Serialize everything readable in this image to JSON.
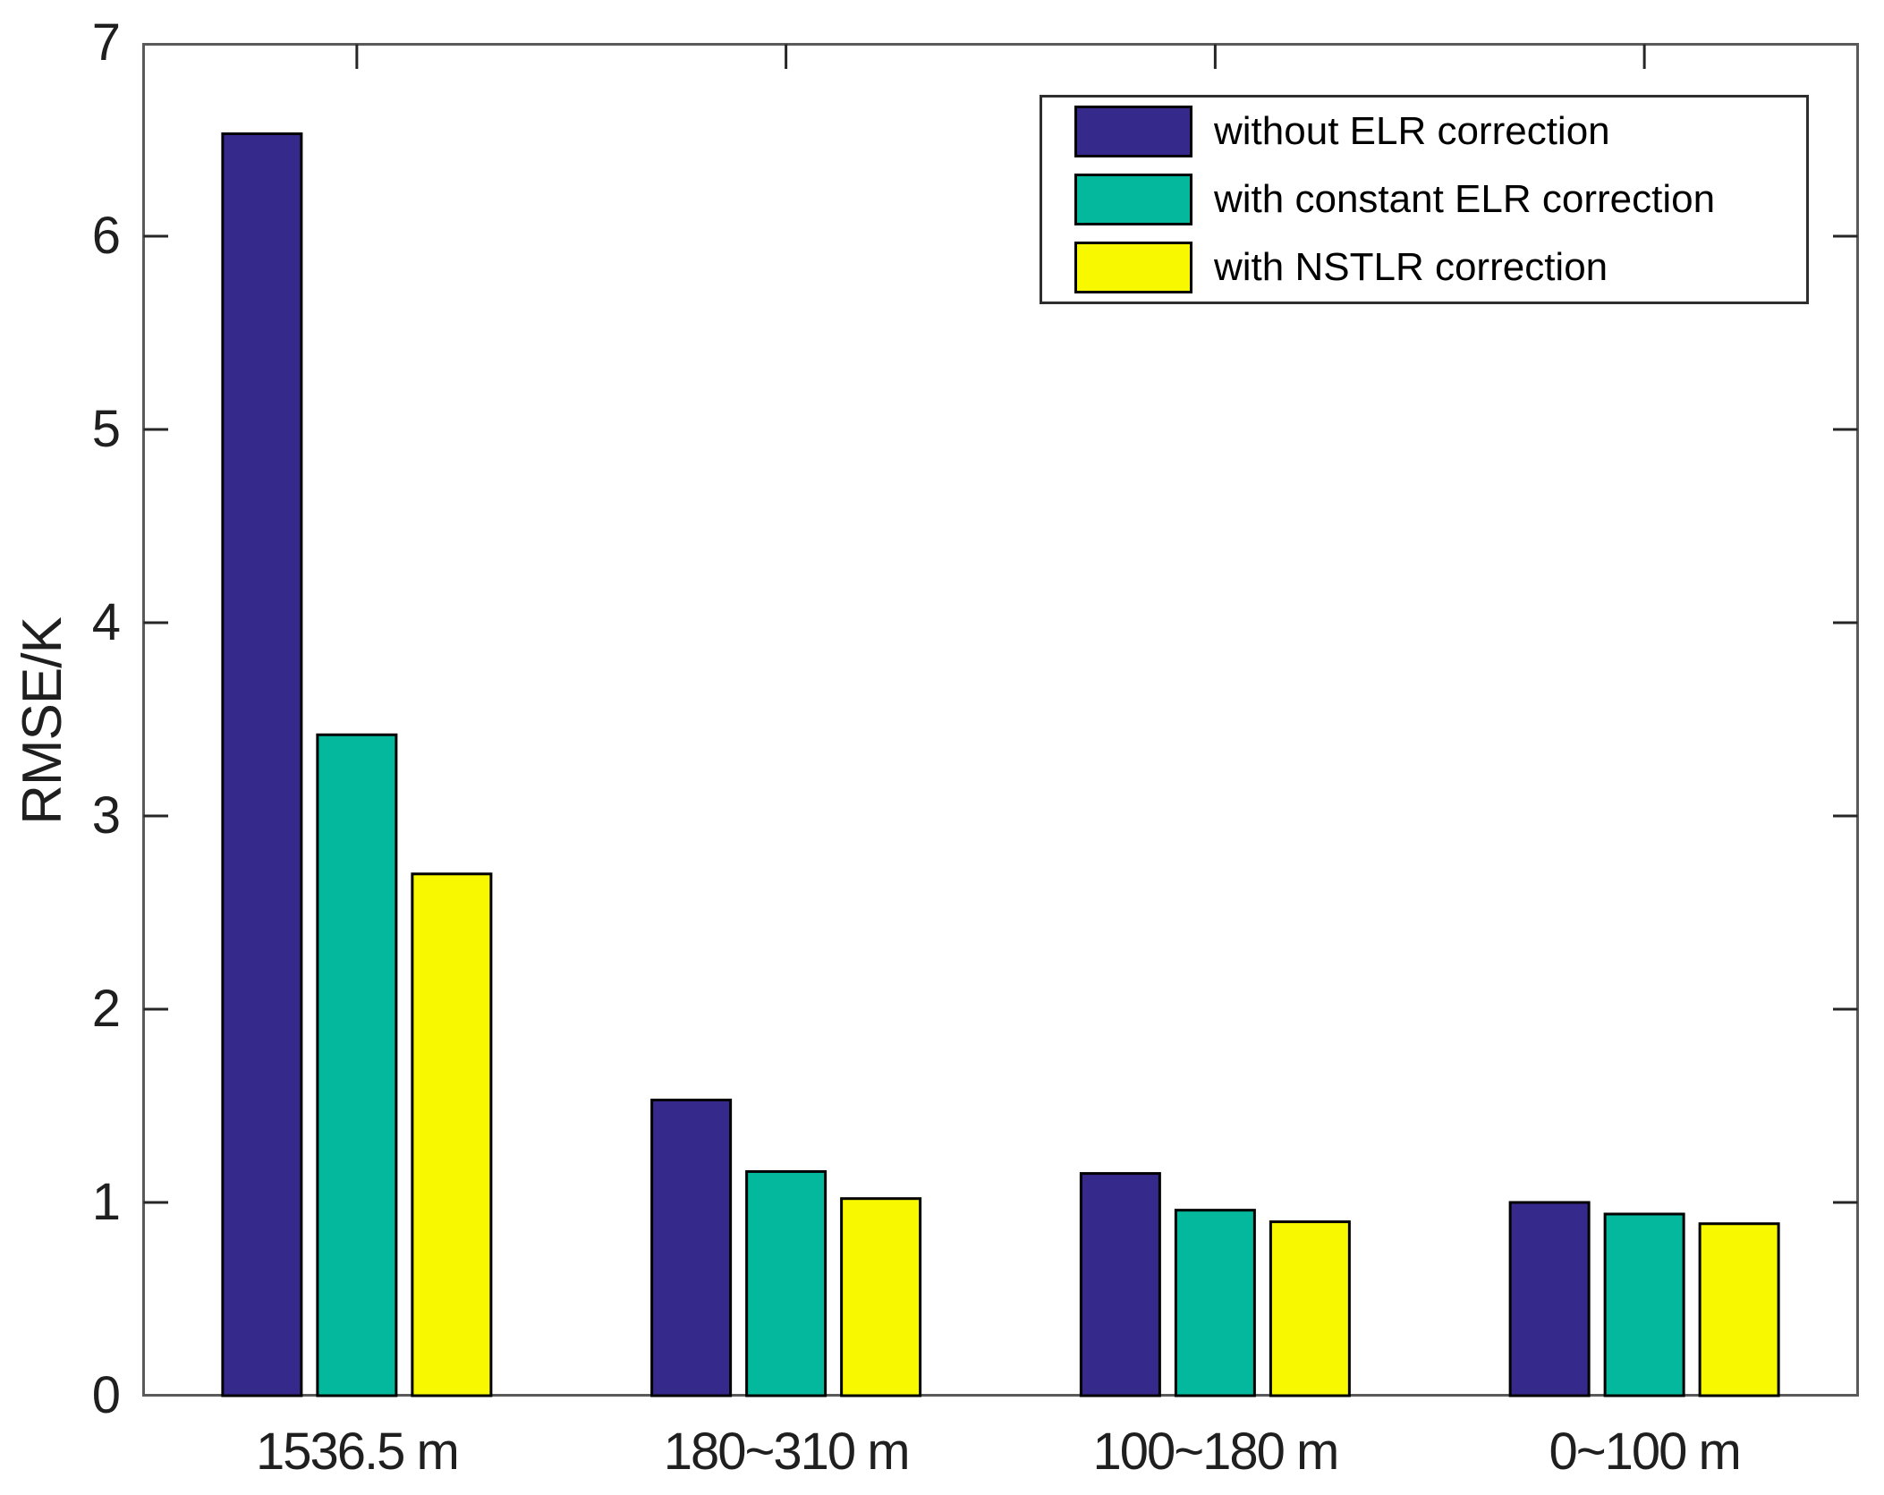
{
  "chart_data": {
    "type": "bar",
    "title": "",
    "xlabel": "",
    "ylabel": "RMSE/K",
    "categories": [
      "1536.5 m",
      "180~310 m",
      "100~180 m",
      "0~100 m"
    ],
    "series": [
      {
        "name": "without ELR correction",
        "color": "#352a8c",
        "values": [
          6.53,
          1.53,
          1.15,
          1.0
        ]
      },
      {
        "name": "with constant ELR correction",
        "color": "#04b89d",
        "values": [
          3.42,
          1.16,
          0.96,
          0.94
        ]
      },
      {
        "name": "with NSTLR correction",
        "color": "#f8f800",
        "values": [
          2.7,
          1.02,
          0.9,
          0.89
        ]
      }
    ],
    "ylim": [
      0,
      7
    ],
    "yticks": [
      0,
      1,
      2,
      3,
      4,
      5,
      6,
      7
    ],
    "grid": false,
    "legend_position": "top-right",
    "bar_edge_color": "#000000",
    "axis_frame_color": "#5a5a5a",
    "tick_color": "#262626",
    "text_color": "#1f1f1f"
  }
}
